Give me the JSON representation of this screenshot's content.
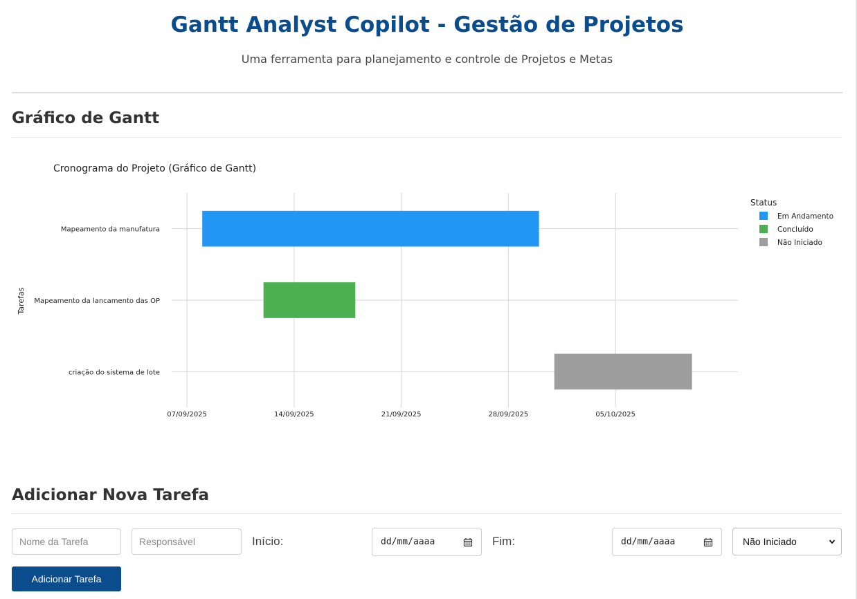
{
  "header": {
    "title": "Gantt Analyst Copilot - Gestão de Projetos",
    "subtitle": "Uma ferramenta para planejamento e controle de Projetos e Metas"
  },
  "gantt_section": {
    "heading": "Gráfico de Gantt"
  },
  "chart_data": {
    "type": "gantt",
    "title": "Cronograma do Projeto (Gráfico de Gantt)",
    "ylabel": "Tarefas",
    "xlabel": "",
    "x_ticks": [
      "07/09/2025",
      "14/09/2025",
      "21/09/2025",
      "28/09/2025",
      "05/10/2025"
    ],
    "x_range": [
      "2025-09-06",
      "2025-10-13"
    ],
    "grid": true,
    "legend": {
      "title": "Status",
      "placement": "right",
      "entries": [
        {
          "name": "Em Andamento",
          "color": "#2196F3"
        },
        {
          "name": "Concluído",
          "color": "#4CAF50"
        },
        {
          "name": "Não Iniciado",
          "color": "#9E9E9E"
        }
      ]
    },
    "tasks": [
      {
        "name": "Mapeamento da manufatura",
        "start": "2025-09-08",
        "end": "2025-09-30",
        "status": "Em Andamento"
      },
      {
        "name": "Mapeamento da lancamento das OP",
        "start": "2025-09-12",
        "end": "2025-09-18",
        "status": "Concluído"
      },
      {
        "name": "criação do sistema de lote",
        "start": "2025-10-01",
        "end": "2025-10-10",
        "status": "Não Iniciado"
      }
    ]
  },
  "form_section": {
    "heading": "Adicionar Nova Tarefa",
    "task_name_placeholder": "Nome da Tarefa",
    "responsible_placeholder": "Responsável",
    "start_label": "Início:",
    "start_value": "dd/mm/aaaa",
    "end_label": "Fim:",
    "end_value": "dd/mm/aaaa",
    "status_selected": "Não Iniciado",
    "submit_label": "Adicionar Tarefa"
  },
  "icons": {
    "date_picker": "calendar-icon",
    "select": "chevron-down-icon"
  },
  "colors": {
    "brand": "#0b4c8c"
  }
}
